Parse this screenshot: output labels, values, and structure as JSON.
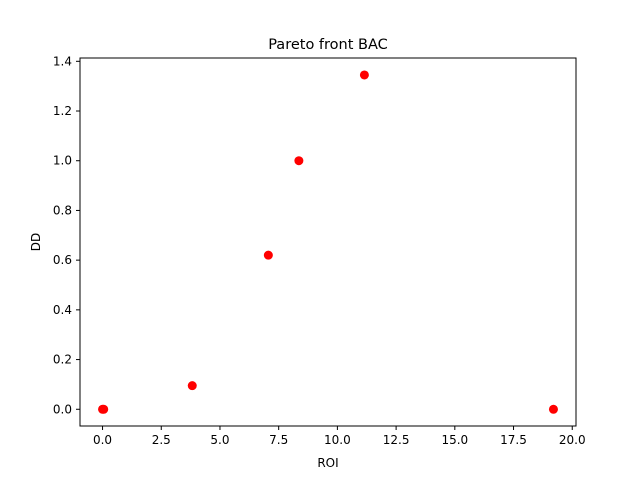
{
  "chart_data": {
    "type": "scatter",
    "title": "Pareto front BAC",
    "xlabel": "ROI",
    "ylabel": "DD",
    "xlim": [
      -0.96,
      20.16
    ],
    "ylim": [
      -0.0673,
      1.4133
    ],
    "xticks": [
      0.0,
      2.5,
      5.0,
      7.5,
      10.0,
      12.5,
      15.0,
      17.5,
      20.0
    ],
    "xtick_labels": [
      "0.0",
      "2.5",
      "5.0",
      "7.5",
      "10.0",
      "12.5",
      "15.0",
      "17.5",
      "20.0"
    ],
    "yticks": [
      0.0,
      0.2,
      0.4,
      0.6,
      0.8,
      1.0,
      1.2,
      1.4
    ],
    "ytick_labels": [
      "0.0",
      "0.2",
      "0.4",
      "0.6",
      "0.8",
      "1.0",
      "1.2",
      "1.4"
    ],
    "grid": false,
    "marker_color": "#ff0000",
    "series": [
      {
        "x": [
          0.0,
          0.05,
          3.82,
          7.06,
          8.36,
          11.15,
          19.2
        ],
        "y": [
          0.0,
          0.0,
          0.095,
          0.62,
          1.0,
          1.345,
          0.0
        ]
      }
    ]
  }
}
